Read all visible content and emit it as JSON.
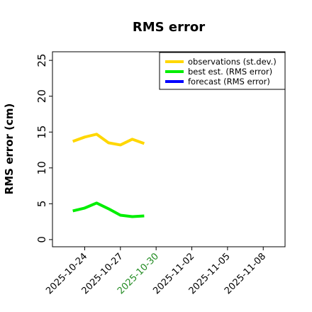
{
  "chart_data": {
    "type": "line",
    "title": "RMS error",
    "ylabel": "RMS error (cm)",
    "x": [
      "2025-10-23",
      "2025-10-24",
      "2025-10-25",
      "2025-10-26",
      "2025-10-27",
      "2025-10-28",
      "2025-10-29"
    ],
    "series": [
      {
        "name": "observations (st.dev.)",
        "color": "#ffd700",
        "values": [
          13.7,
          14.3,
          14.7,
          13.5,
          13.2,
          14.0,
          13.4
        ]
      },
      {
        "name": "best est. (RMS error)",
        "color": "#00ee00",
        "values": [
          4.0,
          4.4,
          5.1,
          4.3,
          3.4,
          3.2,
          3.3
        ]
      },
      {
        "name": "forecast (RMS error)",
        "color": "#0000ff",
        "values": [
          null,
          null,
          null,
          null,
          null,
          null,
          null
        ]
      }
    ],
    "xlim": [
      "2025-10-21T07:00",
      "2025-11-09T20:00"
    ],
    "xticks": [
      "2025-10-24",
      "2025-10-27",
      {
        "value": "2025-10-30",
        "label": "2025-10-30",
        "color": "#228b22"
      },
      "2025-11-02",
      "2025-11-05",
      "2025-11-08"
    ],
    "ylim": [
      -1,
      26.2
    ],
    "yticks": [
      0,
      5,
      10,
      15,
      20,
      25
    ],
    "legend": "upper right",
    "grid": false
  }
}
